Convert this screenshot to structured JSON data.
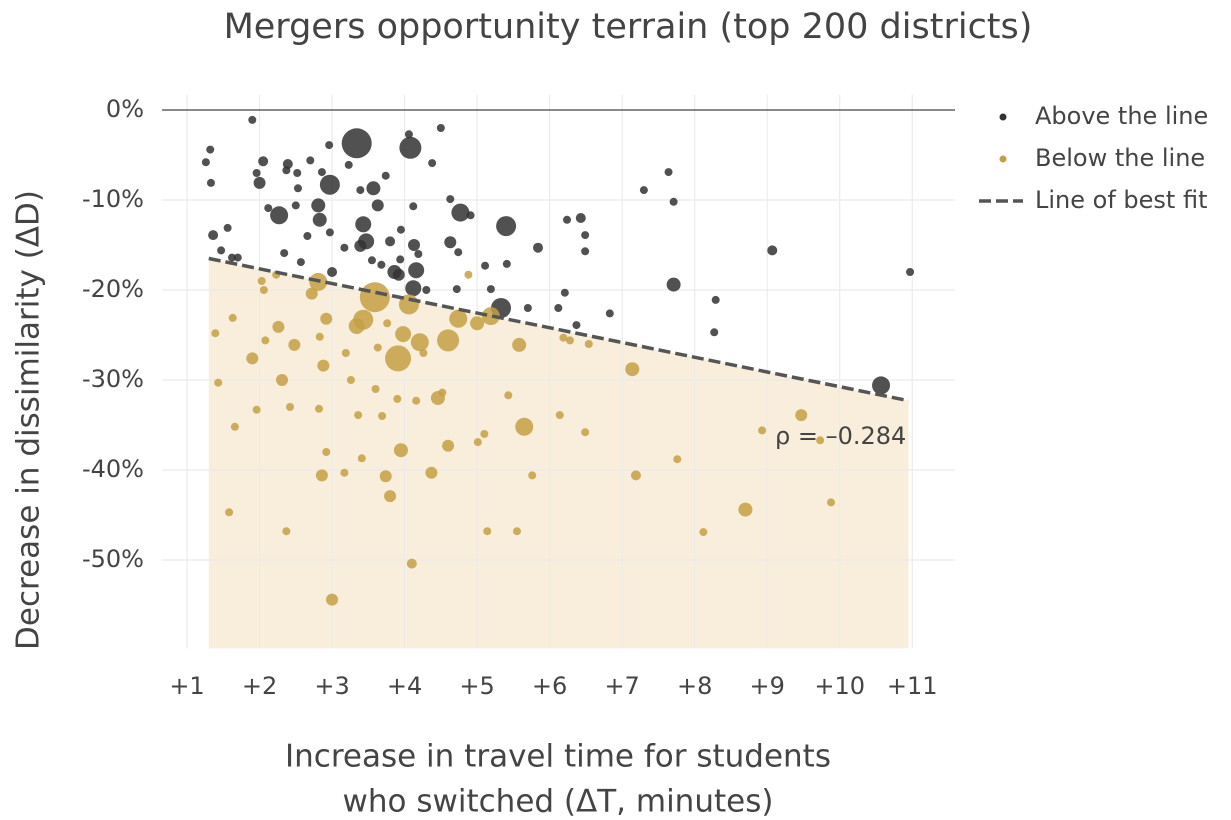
{
  "chart_data": {
    "type": "scatter",
    "title": "Mergers opportunity terrain (top 200 districts)",
    "xlabel": [
      "Increase in travel time for students",
      "who switched    (ΔT, minutes)"
    ],
    "ylabel": "Decrease in dissimilarity    (ΔD)",
    "xlim": [
      0.655,
      11.59
    ],
    "ylim": [
      -59.8,
      1.7
    ],
    "xticks": [
      {
        "value": 1,
        "label": "+1"
      },
      {
        "value": 2,
        "label": "+2"
      },
      {
        "value": 3,
        "label": "+3"
      },
      {
        "value": 4,
        "label": "+4"
      },
      {
        "value": 5,
        "label": "+5"
      },
      {
        "value": 6,
        "label": "+6"
      },
      {
        "value": 7,
        "label": "+7"
      },
      {
        "value": 8,
        "label": "+8"
      },
      {
        "value": 9,
        "label": "+9"
      },
      {
        "value": 10,
        "label": "+10"
      },
      {
        "value": 11,
        "label": "+11"
      }
    ],
    "yticks": [
      {
        "value": 0,
        "label": "0%"
      },
      {
        "value": -10,
        "label": "-10%"
      },
      {
        "value": -20,
        "label": "-20%"
      },
      {
        "value": -30,
        "label": "-30%"
      },
      {
        "value": -40,
        "label": "-40%"
      },
      {
        "value": -50,
        "label": "-50%"
      }
    ],
    "grid": true,
    "zero_line": true,
    "legend": "right",
    "series": [
      {
        "name": "Above the line",
        "color": "#333333",
        "x": [
          1.26,
          1.32,
          1.33,
          1.36,
          1.9,
          2.05,
          2.0,
          1.96,
          2.27,
          2.12,
          2.39,
          2.52,
          2.5,
          2.34,
          2.57,
          2.7,
          2.81,
          2.83,
          2.86,
          2.96,
          2.97,
          2.97,
          3.0,
          3.17,
          3.23,
          3.34,
          3.39,
          3.39,
          3.43,
          3.47,
          3.57,
          3.55,
          3.63,
          3.68,
          3.74,
          3.8,
          3.86,
          3.92,
          3.95,
          3.94,
          4.06,
          4.08,
          4.12,
          4.13,
          4.16,
          4.12,
          4.19,
          4.3,
          4.38,
          4.5,
          4.63,
          4.63,
          4.74,
          4.77,
          4.91,
          4.72,
          5.11,
          5.19,
          5.4,
          5.33,
          5.41,
          5.7,
          5.84,
          6.12,
          6.21,
          6.24,
          6.37,
          6.43,
          6.49,
          6.49,
          6.83,
          7.3,
          7.64,
          7.71,
          7.71,
          8.29,
          8.27,
          9.07,
          10.57,
          10.97,
          1.47,
          1.56,
          1.62,
          1.7,
          2.37,
          2.66,
          2.53
        ],
        "values": [
          -5.8,
          -4.4,
          -8.1,
          -13.9,
          -1.1,
          -5.7,
          -8.1,
          -7.0,
          -11.7,
          -10.9,
          -6.0,
          -7.0,
          -10.6,
          -15.9,
          -16.9,
          -5.6,
          -10.6,
          -12.2,
          -6.9,
          -3.9,
          -8.3,
          -13.6,
          -18.0,
          -15.3,
          -6.1,
          -3.7,
          -8.9,
          -15.1,
          -12.7,
          -14.6,
          -8.7,
          -16.7,
          -10.6,
          -17.2,
          -7.3,
          -14.6,
          -18.0,
          -18.3,
          -13.3,
          -16.6,
          -2.7,
          -4.2,
          -10.7,
          -15.0,
          -17.8,
          -19.8,
          -16.0,
          -20.0,
          -5.9,
          -2.0,
          -9.9,
          -14.7,
          -15.8,
          -11.4,
          -11.7,
          -19.9,
          -17.3,
          -19.9,
          -12.9,
          -22.0,
          -17.1,
          -22.0,
          -15.3,
          -22.0,
          -20.3,
          -12.2,
          -23.9,
          -12.0,
          -13.9,
          -15.7,
          -22.6,
          -8.9,
          -6.9,
          -10.2,
          -19.4,
          -21.1,
          -24.7,
          -15.6,
          -30.6,
          -18.0,
          -15.6,
          -13.1,
          -16.4,
          -16.4,
          -6.7,
          -14.0,
          -8.7
        ],
        "sizes": [
          4,
          4,
          4,
          5,
          4,
          5,
          6,
          4,
          9,
          4,
          5,
          4,
          4,
          4,
          4,
          4,
          7,
          7,
          4,
          4,
          10,
          4,
          5,
          4,
          4,
          15,
          4,
          6,
          8,
          8,
          7,
          4,
          6,
          4,
          4,
          5,
          7,
          6,
          4,
          4,
          4,
          11,
          4,
          6,
          8,
          8,
          4,
          4,
          4,
          4,
          4,
          6,
          4,
          9,
          4,
          4,
          4,
          4,
          10,
          10,
          4,
          4,
          5,
          4,
          4,
          4,
          4,
          5,
          4,
          4,
          4,
          4,
          4,
          4,
          7,
          4,
          4,
          5,
          9,
          4,
          4,
          4,
          4,
          4,
          4,
          4,
          4
        ]
      },
      {
        "name": "Below the line",
        "color": "#c4a044",
        "x": [
          1.39,
          1.43,
          1.63,
          1.66,
          1.58,
          1.9,
          1.96,
          2.03,
          2.06,
          2.08,
          2.23,
          2.26,
          2.31,
          2.37,
          2.42,
          2.48,
          2.72,
          2.81,
          2.83,
          2.88,
          2.82,
          2.86,
          2.92,
          2.92,
          3.0,
          3.17,
          3.19,
          3.26,
          3.34,
          3.36,
          3.41,
          3.43,
          3.59,
          3.6,
          3.63,
          3.69,
          3.74,
          3.76,
          3.8,
          3.91,
          3.98,
          3.95,
          3.9,
          4.06,
          4.1,
          4.16,
          4.21,
          4.26,
          4.37,
          4.46,
          4.52,
          4.6,
          4.6,
          4.74,
          4.88,
          5.0,
          5.01,
          5.1,
          5.14,
          5.19,
          5.43,
          5.55,
          5.58,
          5.65,
          5.76,
          6.14,
          6.28,
          6.49,
          6.54,
          7.14,
          7.19,
          7.76,
          8.12,
          8.7,
          8.93,
          9.47,
          9.73,
          9.88,
          6.19
        ],
        "values": [
          -24.8,
          -30.3,
          -23.1,
          -35.2,
          -44.7,
          -27.6,
          -33.3,
          -19.0,
          -20.0,
          -25.6,
          -18.3,
          -24.1,
          -30.0,
          -46.8,
          -33.0,
          -26.1,
          -20.4,
          -19.1,
          -25.2,
          -28.4,
          -33.2,
          -40.6,
          -23.2,
          -38.0,
          -54.4,
          -40.3,
          -27.0,
          -30.0,
          -24.0,
          -33.9,
          -38.7,
          -23.3,
          -20.8,
          -31.0,
          -26.4,
          -34.0,
          -40.7,
          -23.7,
          -42.9,
          -27.6,
          -24.9,
          -37.8,
          -32.1,
          -21.6,
          -50.4,
          -32.3,
          -25.8,
          -27.0,
          -40.3,
          -32.0,
          -31.4,
          -37.3,
          -25.6,
          -23.2,
          -18.3,
          -23.7,
          -36.9,
          -36.0,
          -46.8,
          -22.9,
          -31.7,
          -46.8,
          -26.1,
          -35.2,
          -40.6,
          -33.9,
          -25.6,
          -35.8,
          -26.0,
          -28.8,
          -40.6,
          -38.8,
          -46.9,
          -44.4,
          -35.6,
          -33.9,
          -36.7,
          -43.6,
          -25.3
        ],
        "sizes": [
          4,
          4,
          4,
          4,
          4,
          6,
          4,
          4,
          4,
          4,
          4,
          6,
          6,
          4,
          4,
          6,
          6,
          9,
          4,
          6,
          4,
          6,
          6,
          4,
          6,
          4,
          4,
          4,
          8,
          4,
          4,
          10,
          15,
          4,
          4,
          4,
          6,
          4,
          6,
          13,
          8,
          7,
          4,
          10,
          5,
          4,
          9,
          4,
          6,
          7,
          4,
          6,
          11,
          9,
          4,
          7,
          4,
          4,
          4,
          9,
          4,
          4,
          7,
          9,
          4,
          4,
          4,
          4,
          4,
          7,
          5,
          4,
          4,
          7,
          4,
          6,
          4,
          4,
          4
        ]
      }
    ],
    "fit": {
      "name": "Line of best fit",
      "color": "#555555",
      "x": [
        1.3,
        10.95
      ],
      "y": [
        -16.5,
        -32.3
      ]
    },
    "shade_color": "#f8eedb",
    "annotation": "ρ = –0.284"
  }
}
